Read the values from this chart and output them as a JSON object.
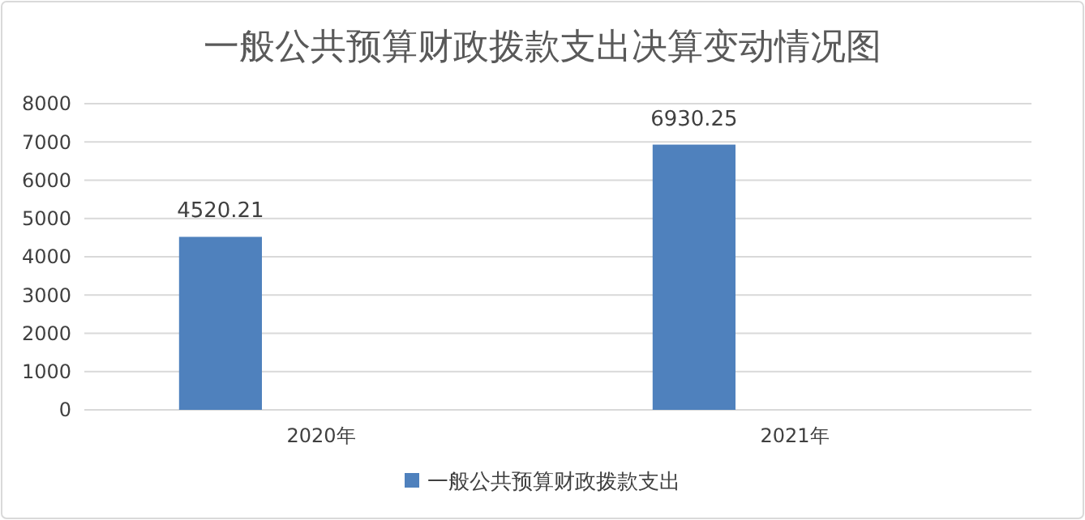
{
  "chart_data": {
    "type": "bar",
    "title": "一般公共预算财政拨款支出决算变动情况图",
    "categories": [
      "2020年",
      "2021年"
    ],
    "series": [
      {
        "name": "一般公共预算财政拨款支出",
        "color": "#4f81bd",
        "values": [
          4520.21,
          6930.25
        ]
      }
    ],
    "ylim": [
      0,
      8000
    ],
    "yticks": [
      0,
      1000,
      2000,
      3000,
      4000,
      5000,
      6000,
      7000,
      8000
    ],
    "grid": "y",
    "legend": "bottom",
    "data_labels": true
  }
}
